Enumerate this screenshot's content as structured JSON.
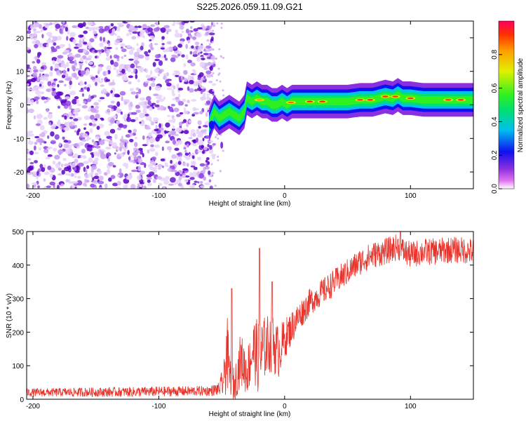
{
  "chart_data": [
    {
      "type": "heatmap",
      "title": "S225.2026.059.11.09.G21",
      "xlabel": "Height of straight line (km)",
      "ylabel": "Frequency (Hz)",
      "xlim": [
        -205,
        150
      ],
      "ylim": [
        -25,
        25
      ],
      "xticks": [
        -200,
        -100,
        0,
        100
      ],
      "yticks": [
        -20,
        -10,
        0,
        10,
        20
      ],
      "noise_region_x": [
        -205,
        -60
      ],
      "signal_ridge": {
        "x": [
          -60,
          -56,
          -52,
          -48,
          -44,
          -40,
          -36,
          -32,
          -30,
          -26,
          -22,
          -18,
          -14,
          -10,
          -6,
          -2,
          2,
          6,
          10,
          14,
          20,
          30,
          40,
          50,
          60,
          70,
          80,
          86,
          90,
          94,
          100,
          110,
          120,
          130,
          140,
          150
        ],
        "freq": [
          -6,
          -2,
          -4,
          -3,
          -2,
          -3,
          -4,
          -2,
          2,
          1,
          2,
          1,
          1,
          0,
          0,
          1,
          0,
          1,
          1,
          1,
          1,
          1,
          1,
          1,
          1.5,
          1.5,
          2.5,
          2,
          3,
          2,
          2,
          1.5,
          1.5,
          1.5,
          1.5,
          1.5
        ]
      },
      "colorbar": {
        "label": "Normalized spectral amplitude",
        "ticks": [
          "0.0",
          "0.2",
          "0.4",
          "0.6",
          "0.8"
        ],
        "range": [
          0,
          1
        ]
      }
    },
    {
      "type": "line",
      "xlabel": "Height of straight line (km)",
      "ylabel": "SNR (10 * v/v)",
      "xlim": [
        -205,
        150
      ],
      "ylim": [
        0,
        500
      ],
      "xticks": [
        -200,
        -100,
        0,
        100
      ],
      "yticks": [
        0,
        100,
        200,
        300,
        400,
        500
      ],
      "color": "#e8322a",
      "envelope": {
        "x": [
          -205,
          -120,
          -60,
          -52,
          -48,
          -46,
          -44,
          -40,
          -35,
          -30,
          -25,
          -20,
          -15,
          -10,
          -5,
          0,
          10,
          20,
          30,
          40,
          50,
          60,
          70,
          80,
          90,
          95,
          100,
          110,
          120,
          130,
          140,
          150
        ],
        "mean": [
          20,
          22,
          25,
          30,
          60,
          150,
          80,
          40,
          120,
          80,
          150,
          120,
          160,
          170,
          140,
          180,
          240,
          290,
          320,
          350,
          380,
          410,
          430,
          440,
          455,
          440,
          430,
          440,
          440,
          445,
          445,
          440
        ],
        "spread": [
          12,
          15,
          15,
          20,
          60,
          130,
          60,
          50,
          80,
          70,
          90,
          120,
          90,
          90,
          80,
          60,
          45,
          40,
          40,
          40,
          40,
          40,
          40,
          40,
          40,
          40,
          40,
          40,
          40,
          40,
          40,
          40
        ]
      },
      "spikes": [
        {
          "x": -42,
          "y": 330
        },
        {
          "x": -20,
          "y": 450
        },
        {
          "x": -10,
          "y": 350
        },
        {
          "x": 92,
          "y": 500
        }
      ]
    }
  ]
}
